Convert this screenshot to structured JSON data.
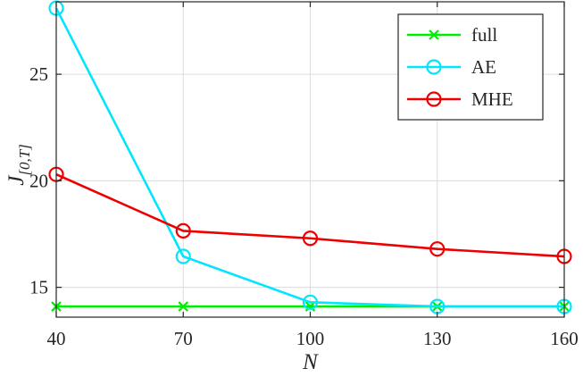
{
  "chart_data": {
    "type": "line",
    "title": "",
    "xlabel": "N",
    "ylabel": "J",
    "ylabel_subscript": "[0,T]",
    "x": [
      40,
      70,
      100,
      130,
      160
    ],
    "xlim": [
      40,
      160
    ],
    "ylim": [
      13.6,
      28.4
    ],
    "xticks": [
      "40",
      "70",
      "100",
      "130",
      "160"
    ],
    "yticks": [
      "15",
      "20",
      "25"
    ],
    "xtick_values": [
      40,
      70,
      100,
      130,
      160
    ],
    "ytick_values": [
      15,
      20,
      25
    ],
    "grid": true,
    "legend_position": "top-right",
    "series": [
      {
        "name": "full",
        "color": "#00ee00",
        "marker": "x",
        "values": [
          14.1,
          14.1,
          14.1,
          14.1,
          14.1
        ]
      },
      {
        "name": "AE",
        "color": "#00e6ff",
        "marker": "o",
        "values": [
          28.1,
          16.45,
          14.3,
          14.1,
          14.1
        ]
      },
      {
        "name": "MHE",
        "color": "#ee0000",
        "marker": "o",
        "values": [
          20.3,
          17.65,
          17.3,
          16.8,
          16.45
        ]
      }
    ]
  }
}
